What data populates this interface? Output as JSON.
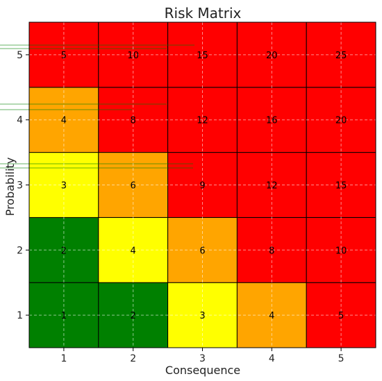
{
  "chart_data": {
    "type": "heatmap",
    "title": "Risk Matrix",
    "xlabel": "Consequence",
    "ylabel": "Probability",
    "x": [
      1,
      2,
      3,
      4,
      5
    ],
    "y": [
      1,
      2,
      3,
      4,
      5
    ],
    "x_tick_labels": [
      "1",
      "2",
      "3",
      "4",
      "5"
    ],
    "y_tick_labels": [
      "1",
      "2",
      "3",
      "4",
      "5"
    ],
    "xlim": [
      0.5,
      5.5
    ],
    "ylim": [
      0.5,
      5.5
    ],
    "grid": true,
    "cells": [
      {
        "x": 1,
        "y": 1,
        "value": 1,
        "level": "green"
      },
      {
        "x": 2,
        "y": 1,
        "value": 2,
        "level": "green"
      },
      {
        "x": 3,
        "y": 1,
        "value": 3,
        "level": "yellow"
      },
      {
        "x": 4,
        "y": 1,
        "value": 4,
        "level": "orange"
      },
      {
        "x": 5,
        "y": 1,
        "value": 5,
        "level": "red"
      },
      {
        "x": 1,
        "y": 2,
        "value": 2,
        "level": "green"
      },
      {
        "x": 2,
        "y": 2,
        "value": 4,
        "level": "yellow"
      },
      {
        "x": 3,
        "y": 2,
        "value": 6,
        "level": "orange"
      },
      {
        "x": 4,
        "y": 2,
        "value": 8,
        "level": "red"
      },
      {
        "x": 5,
        "y": 2,
        "value": 10,
        "level": "red"
      },
      {
        "x": 1,
        "y": 3,
        "value": 3,
        "level": "yellow"
      },
      {
        "x": 2,
        "y": 3,
        "value": 6,
        "level": "orange"
      },
      {
        "x": 3,
        "y": 3,
        "value": 9,
        "level": "red"
      },
      {
        "x": 4,
        "y": 3,
        "value": 12,
        "level": "red"
      },
      {
        "x": 5,
        "y": 3,
        "value": 15,
        "level": "red"
      },
      {
        "x": 1,
        "y": 4,
        "value": 4,
        "level": "orange"
      },
      {
        "x": 2,
        "y": 4,
        "value": 8,
        "level": "red"
      },
      {
        "x": 3,
        "y": 4,
        "value": 12,
        "level": "red"
      },
      {
        "x": 4,
        "y": 4,
        "value": 16,
        "level": "red"
      },
      {
        "x": 5,
        "y": 4,
        "value": 20,
        "level": "red"
      },
      {
        "x": 1,
        "y": 5,
        "value": 5,
        "level": "red"
      },
      {
        "x": 2,
        "y": 5,
        "value": 10,
        "level": "red"
      },
      {
        "x": 3,
        "y": 5,
        "value": 15,
        "level": "red"
      },
      {
        "x": 4,
        "y": 5,
        "value": 20,
        "level": "red"
      },
      {
        "x": 5,
        "y": 5,
        "value": 25,
        "level": "red"
      }
    ],
    "colors": {
      "green": "#008000",
      "yellow": "#ffff00",
      "orange": "#ffa500",
      "red": "#ff0000",
      "cell_border": "#000000",
      "grid": "#ffffff",
      "text": "#000000",
      "stray_lines": "#008000"
    }
  }
}
